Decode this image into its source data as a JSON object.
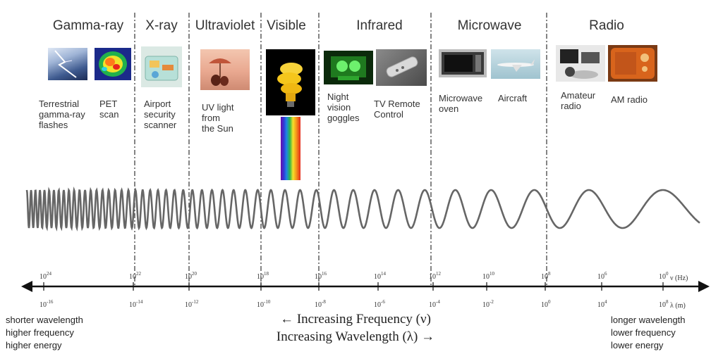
{
  "regions": [
    {
      "name": "Gamma-ray"
    },
    {
      "name": "X-ray"
    },
    {
      "name": "Ultraviolet"
    },
    {
      "name": "Visible"
    },
    {
      "name": "Infrared"
    },
    {
      "name": "Microwave"
    },
    {
      "name": "Radio"
    }
  ],
  "examples": [
    {
      "label": "Terrestrial\ngamma-ray\nflashes",
      "icon": "lightning-photo"
    },
    {
      "label": "PET\nscan",
      "icon": "pet-scan-photo"
    },
    {
      "label": "Airport\nsecurity\nscanner",
      "icon": "xray-luggage-photo"
    },
    {
      "label": "UV light\nfrom\nthe Sun",
      "icon": "beach-sun-photo"
    },
    {
      "label": "Night\nvision\ngoggles",
      "icon": "night-vision-photo"
    },
    {
      "label": "TV Remote\nControl",
      "icon": "remote-control-photo"
    },
    {
      "label": "Microwave\noven",
      "icon": "microwave-oven-photo"
    },
    {
      "label": "Aircraft",
      "icon": "aircraft-photo"
    },
    {
      "label": "Amateur\nradio",
      "icon": "amateur-radio-photo"
    },
    {
      "label": "AM radio",
      "icon": "am-radio-photo"
    }
  ],
  "visible_icons": [
    "light-bulb-photo",
    "rainbow-spectrum"
  ],
  "frequency_scale": {
    "unit_label": "ν (Hz)",
    "ticks": [
      {
        "base": "10",
        "exp": "24"
      },
      {
        "base": "10",
        "exp": "22"
      },
      {
        "base": "10",
        "exp": "20"
      },
      {
        "base": "10",
        "exp": "18"
      },
      {
        "base": "10",
        "exp": "16"
      },
      {
        "base": "10",
        "exp": "14"
      },
      {
        "base": "10",
        "exp": "12"
      },
      {
        "base": "10",
        "exp": "10"
      },
      {
        "base": "10",
        "exp": "8"
      },
      {
        "base": "10",
        "exp": "6"
      },
      {
        "base": "10",
        "exp": "0"
      }
    ]
  },
  "wavelength_scale": {
    "unit_label": "λ (m)",
    "ticks": [
      {
        "base": "10",
        "exp": "-16"
      },
      {
        "base": "10",
        "exp": "-14"
      },
      {
        "base": "10",
        "exp": "-12"
      },
      {
        "base": "10",
        "exp": "-10"
      },
      {
        "base": "10",
        "exp": "-8"
      },
      {
        "base": "10",
        "exp": "-6"
      },
      {
        "base": "10",
        "exp": "-4"
      },
      {
        "base": "10",
        "exp": "-2"
      },
      {
        "base": "10",
        "exp": "0"
      },
      {
        "base": "10",
        "exp": "4"
      },
      {
        "base": "10",
        "exp": "8"
      }
    ]
  },
  "left_note": "shorter wavelength\nhigher frequency\nhigher energy",
  "right_note": "longer wavelength\nlower frequency\nlower energy",
  "arrow_frequency": "← Increasing Frequency (ν)",
  "arrow_wavelength": "Increasing Wavelength (λ) →",
  "colors": {
    "wave": "#666666",
    "axis": "#111111",
    "divider": "#333333"
  }
}
